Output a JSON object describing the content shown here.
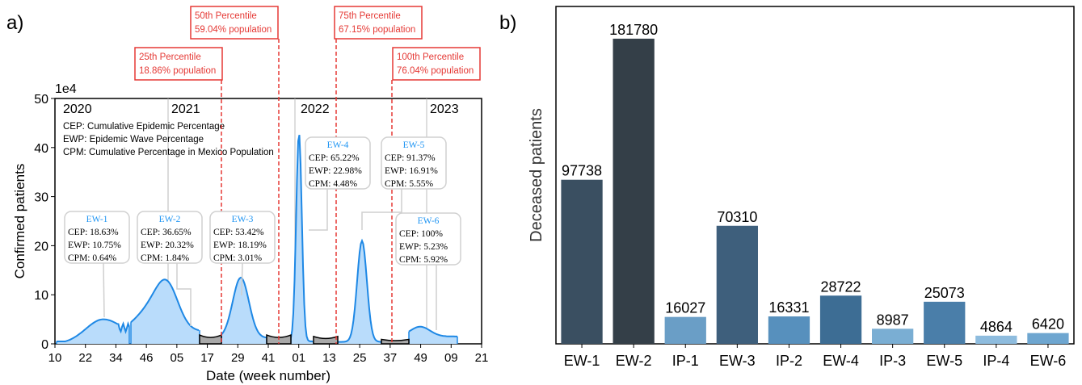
{
  "panel_labels": {
    "a": "a)",
    "b": "b)"
  },
  "chart_data": [
    {
      "type": "area",
      "multiplier_label": "1e4",
      "xlabel": "Date (week number)",
      "ylabel": "Confirmed patients",
      "ylim": [
        0,
        50
      ],
      "yticks": [
        "0",
        "10",
        "20",
        "30",
        "40",
        "50"
      ],
      "xticks": [
        "10",
        "22",
        "34",
        "46",
        "05",
        "17",
        "29",
        "41",
        "01",
        "13",
        "25",
        "37",
        "49",
        "09",
        "21"
      ],
      "years": [
        "2020",
        "2021",
        "2022",
        "2023"
      ],
      "legend_notes": [
        "CEP: Cumulative Epidemic Percentage",
        "EWP: Epidemic Wave Percentage",
        "CPM: Cumulative Percentage in Mexico Population"
      ],
      "percentiles": [
        {
          "title": "25th Percentile",
          "population": "18.86% population"
        },
        {
          "title": "50th Percentile",
          "population": "59.04% population"
        },
        {
          "title": "75th Percentile",
          "population": "67.15% population"
        },
        {
          "title": "100th Percentile",
          "population": "76.04% population"
        }
      ],
      "waves": [
        {
          "name": "EW-1",
          "cep": "CEP: 18.63%",
          "ewp": "EWP: 10.75%",
          "cpm": "CPM: 0.64%"
        },
        {
          "name": "EW-2",
          "cep": "CEP: 36.65%",
          "ewp": "EWP: 20.32%",
          "cpm": "CPM: 1.84%"
        },
        {
          "name": "EW-3",
          "cep": "CEP: 53.42%",
          "ewp": "EWP: 18.19%",
          "cpm": "CPM: 3.01%"
        },
        {
          "name": "EW-4",
          "cep": "CEP: 65.22%",
          "ewp": "EWP: 22.98%",
          "cpm": "CPM: 4.48%"
        },
        {
          "name": "EW-5",
          "cep": "CEP: 91.37%",
          "ewp": "EWP: 16.91%",
          "cpm": "CPM: 5.55%"
        },
        {
          "name": "EW-6",
          "cep": "CEP: 100%",
          "ewp": "EWP: 5.23%",
          "cpm": "CPM: 5.92%"
        }
      ],
      "wave_peaks": [
        5,
        11,
        13.5,
        43,
        21,
        3.5
      ],
      "colors": {
        "wave_line": "#1e88e5",
        "wave_fill": "#b9dcfb",
        "interval_fill": "#a9a9a9",
        "percentile": "#e53935",
        "wave_label": "#2196f3"
      }
    },
    {
      "type": "bar",
      "ylabel": "Deceased patients",
      "categories": [
        "EW-1",
        "EW-2",
        "IP-1",
        "EW-3",
        "IP-2",
        "EW-4",
        "IP-3",
        "EW-5",
        "IP-4",
        "EW-6"
      ],
      "values": [
        97738,
        181780,
        16027,
        70310,
        16331,
        28722,
        8987,
        25073,
        4864,
        6420
      ],
      "colors": [
        "#3a4f61",
        "#343f48",
        "#6a9ec6",
        "#3e5f7c",
        "#5790bd",
        "#3d6d94",
        "#7aaed3",
        "#4a7ea9",
        "#8ebcde",
        "#6ea6d0"
      ]
    }
  ]
}
